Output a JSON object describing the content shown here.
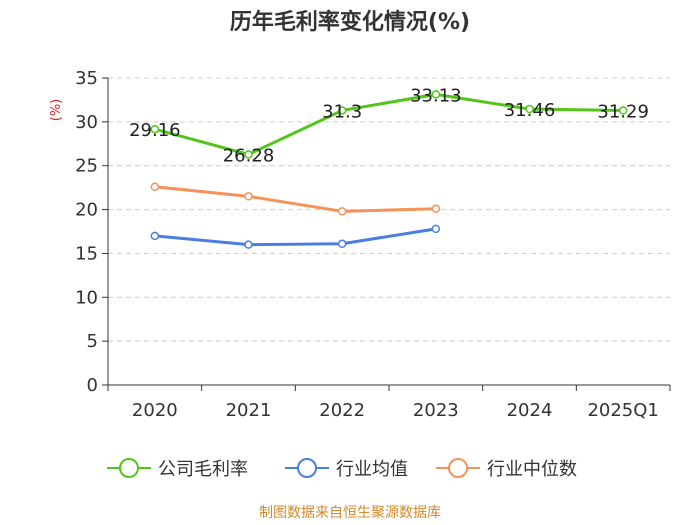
{
  "chart_data": {
    "type": "line",
    "title": "历年毛利率变化情况(%)",
    "ylabel": "(%)",
    "xlabel": "",
    "categories": [
      "2020",
      "2021",
      "2022",
      "2023",
      "2024",
      "2025Q1"
    ],
    "ylim": [
      0,
      35
    ],
    "yticks": [
      0,
      5,
      10,
      15,
      20,
      25,
      30,
      35
    ],
    "grid": true,
    "legend_position": "bottom",
    "series": [
      {
        "name": "公司毛利率",
        "color": "#52c41a",
        "values": [
          29.16,
          26.28,
          31.3,
          33.13,
          31.46,
          31.29
        ],
        "labels": [
          "29.16",
          "26.28",
          "31.3",
          "33.13",
          "31.46",
          "31.29"
        ]
      },
      {
        "name": "行业均值",
        "color": "#4a7fe0",
        "values": [
          17.0,
          16.0,
          16.1,
          17.8,
          null,
          null
        ]
      },
      {
        "name": "行业中位数",
        "color": "#f5925a",
        "values": [
          22.6,
          21.5,
          19.8,
          20.1,
          null,
          null
        ]
      }
    ]
  },
  "source": "制图数据来自恒生聚源数据库"
}
